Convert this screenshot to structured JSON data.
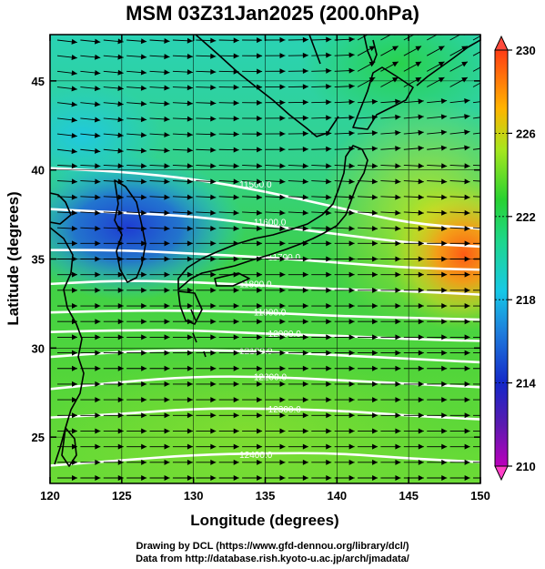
{
  "title": "MSM 03Z31Jan2025 (200.0hPa)",
  "credits": {
    "line1": "Drawing by DCL (https://www.gfd-dennou.org/library/dcl/)",
    "line2": "Data from http://database.rish.kyoto-u.ac.jp/arch/jmadata/"
  },
  "map": {
    "xlabel": "Longitude (degrees)",
    "ylabel": "Latitude  (degrees)",
    "x_range": [
      120,
      150
    ],
    "y_range": [
      22.4,
      47.6
    ],
    "x_ticks": [
      120,
      125,
      130,
      135,
      140,
      145,
      150
    ],
    "y_ticks": [
      25,
      30,
      35,
      40,
      45
    ],
    "x_tick_labels": [
      "120",
      "125",
      "130",
      "135",
      "140",
      "145",
      "150"
    ],
    "y_tick_labels": [
      "25",
      "30",
      "35",
      "40",
      "45"
    ]
  },
  "colorbar": {
    "min": 210,
    "max": 230,
    "tick_values": [
      210,
      214,
      218,
      222,
      226,
      230
    ],
    "tick_labels": [
      "210",
      "214",
      "218",
      "222",
      "226",
      "230"
    ]
  },
  "contours": [
    {
      "label": "11500.0",
      "points": [
        [
          120,
          40.1
        ],
        [
          125,
          39.9
        ],
        [
          130,
          39.5
        ],
        [
          135,
          38.8
        ],
        [
          140,
          37.9
        ],
        [
          145,
          37.0
        ],
        [
          150,
          36.7
        ]
      ]
    },
    {
      "label": "11600.0",
      "points": [
        [
          120,
          37.8
        ],
        [
          125,
          37.6
        ],
        [
          130,
          37.4
        ],
        [
          135,
          36.9
        ],
        [
          140,
          36.4
        ],
        [
          145,
          35.9
        ],
        [
          150,
          35.7
        ]
      ]
    },
    {
      "label": "11700.0",
      "points": [
        [
          120,
          35.5
        ],
        [
          125,
          35.5
        ],
        [
          130,
          35.3
        ],
        [
          135,
          35.1
        ],
        [
          140,
          34.8
        ],
        [
          145,
          34.5
        ],
        [
          150,
          34.4
        ]
      ]
    },
    {
      "label": "11800.0",
      "points": [
        [
          120,
          33.6
        ],
        [
          125,
          33.8
        ],
        [
          130,
          33.7
        ],
        [
          135,
          33.5
        ],
        [
          140,
          33.3
        ],
        [
          145,
          33.2
        ],
        [
          150,
          33.0
        ]
      ]
    },
    {
      "label": "11900.0",
      "points": [
        [
          120,
          32.0
        ],
        [
          125,
          32.1
        ],
        [
          130,
          32.1
        ],
        [
          135,
          32.0
        ],
        [
          140,
          31.8
        ],
        [
          145,
          31.7
        ],
        [
          150,
          31.6
        ]
      ]
    },
    {
      "label": "12000.0",
      "points": [
        [
          120,
          30.9
        ],
        [
          125,
          31.0
        ],
        [
          130,
          31.0
        ],
        [
          135,
          30.8
        ],
        [
          140,
          30.7
        ],
        [
          145,
          30.5
        ],
        [
          150,
          30.4
        ]
      ]
    },
    {
      "label": "12100.0",
      "points": [
        [
          120,
          29.5
        ],
        [
          125,
          29.8
        ],
        [
          130,
          29.9
        ],
        [
          135,
          29.8
        ],
        [
          140,
          29.6
        ],
        [
          145,
          29.4
        ],
        [
          150,
          29.2
        ]
      ]
    },
    {
      "label": "12200.0",
      "points": [
        [
          120,
          27.7
        ],
        [
          125,
          28.1
        ],
        [
          130,
          28.4
        ],
        [
          135,
          28.4
        ],
        [
          140,
          28.2
        ],
        [
          145,
          28.0
        ],
        [
          150,
          27.8
        ]
      ]
    },
    {
      "label": "12300.0",
      "points": [
        [
          120,
          26.1
        ],
        [
          125,
          26.3
        ],
        [
          130,
          26.6
        ],
        [
          135,
          26.6
        ],
        [
          140,
          26.5
        ],
        [
          145,
          26.2
        ],
        [
          150,
          26.0
        ]
      ]
    },
    {
      "label": "12400.0",
      "points": [
        [
          120,
          23.4
        ],
        [
          125,
          23.7
        ],
        [
          130,
          24.0
        ],
        [
          135,
          24.1
        ],
        [
          140,
          24.1
        ],
        [
          145,
          23.8
        ],
        [
          150,
          23.6
        ]
      ]
    }
  ],
  "colors": {
    "contour": "#ffffff",
    "coast": "#000000",
    "arrow": "#000000"
  }
}
